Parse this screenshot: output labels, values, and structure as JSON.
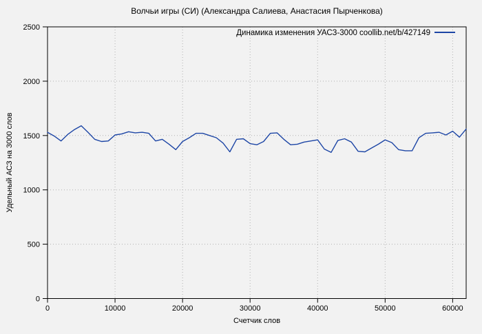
{
  "colors": {
    "background": "#f2f2f2",
    "line": "#1c45a5",
    "grid": "#b0b0b0",
    "axis": "#000000"
  },
  "chart_data": {
    "type": "line",
    "title": "Волчьи игры (СИ) (Александра Салиева, Анастасия Пырченкова)",
    "xlabel": "Счетчик слов",
    "ylabel": "Удельный АСЗ на 3000 слов",
    "xlim": [
      0,
      62000
    ],
    "ylim": [
      0,
      2500
    ],
    "x_ticks": [
      0,
      10000,
      20000,
      30000,
      40000,
      50000,
      60000
    ],
    "y_ticks": [
      0,
      500,
      1000,
      1500,
      2000,
      2500
    ],
    "grid": true,
    "legend_position": "top-right-inside",
    "series": [
      {
        "name": "Динамика изменения УАСЗ-3000  coollib.net/b/427149",
        "color": "#1c45a5",
        "x": [
          0,
          1000,
          2000,
          3000,
          4000,
          5000,
          6000,
          7000,
          8000,
          9000,
          10000,
          11000,
          12000,
          13000,
          14000,
          15000,
          16000,
          17000,
          18000,
          19000,
          20000,
          21000,
          22000,
          23000,
          24000,
          25000,
          26000,
          27000,
          28000,
          29000,
          30000,
          31000,
          32000,
          33000,
          34000,
          35000,
          36000,
          37000,
          38000,
          39000,
          40000,
          41000,
          42000,
          43000,
          44000,
          45000,
          46000,
          47000,
          48000,
          49000,
          50000,
          51000,
          52000,
          53000,
          54000,
          55000,
          56000,
          57000,
          58000,
          59000,
          60000,
          61000,
          62000
        ],
        "y": [
          1530,
          1495,
          1450,
          1510,
          1555,
          1590,
          1530,
          1465,
          1445,
          1450,
          1505,
          1515,
          1535,
          1525,
          1530,
          1520,
          1450,
          1465,
          1420,
          1370,
          1445,
          1480,
          1520,
          1520,
          1500,
          1480,
          1430,
          1350,
          1465,
          1470,
          1425,
          1415,
          1445,
          1520,
          1525,
          1465,
          1415,
          1420,
          1440,
          1450,
          1460,
          1375,
          1345,
          1455,
          1470,
          1440,
          1355,
          1350,
          1385,
          1420,
          1460,
          1435,
          1370,
          1360,
          1360,
          1480,
          1520,
          1525,
          1530,
          1505,
          1540,
          1485,
          1560
        ]
      }
    ]
  }
}
